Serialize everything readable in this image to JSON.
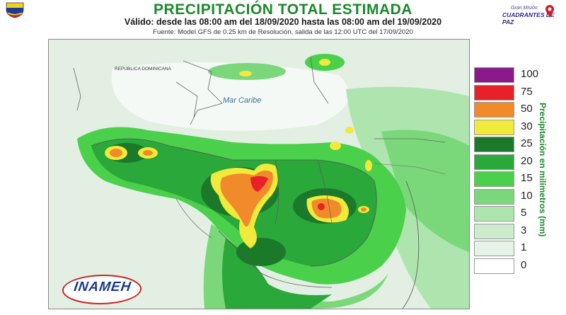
{
  "header": {
    "title": "PRECIPITACIÓN TOTAL ESTIMADA",
    "subtitle": "Válido: desde las 08:00 am del 18/09/2020 hasta las 08:00 am del 19/09/2020",
    "source": "Fuente: Model GFS de 0.25 km de Resolución, salida de las 12:00 UTC del 17/09/2020"
  },
  "logos": {
    "mission_small": "Gran Misión",
    "mission_big": "CUADRANTES DE PAZ",
    "inameh": "INAMEH"
  },
  "map": {
    "sea_label": "Mar Caribe",
    "region_label": "REPÚBLICA DOMINICANA"
  },
  "legend": {
    "unit_label": "Precipitación en milímetros (mm)",
    "entries": [
      {
        "value": "100",
        "color": "#8a1a8a"
      },
      {
        "value": "75",
        "color": "#e8202a"
      },
      {
        "value": "50",
        "color": "#f08a2a"
      },
      {
        "value": "30",
        "color": "#f2ea3a"
      },
      {
        "value": "25",
        "color": "#1a7a2a"
      },
      {
        "value": "20",
        "color": "#2aa83a"
      },
      {
        "value": "15",
        "color": "#4ad04a"
      },
      {
        "value": "10",
        "color": "#7ad87a"
      },
      {
        "value": "5",
        "color": "#aee4ae"
      },
      {
        "value": "3",
        "color": "#cdeccd"
      },
      {
        "value": "1",
        "color": "#e6f4e6"
      },
      {
        "value": "0",
        "color": "#ffffff"
      }
    ]
  }
}
